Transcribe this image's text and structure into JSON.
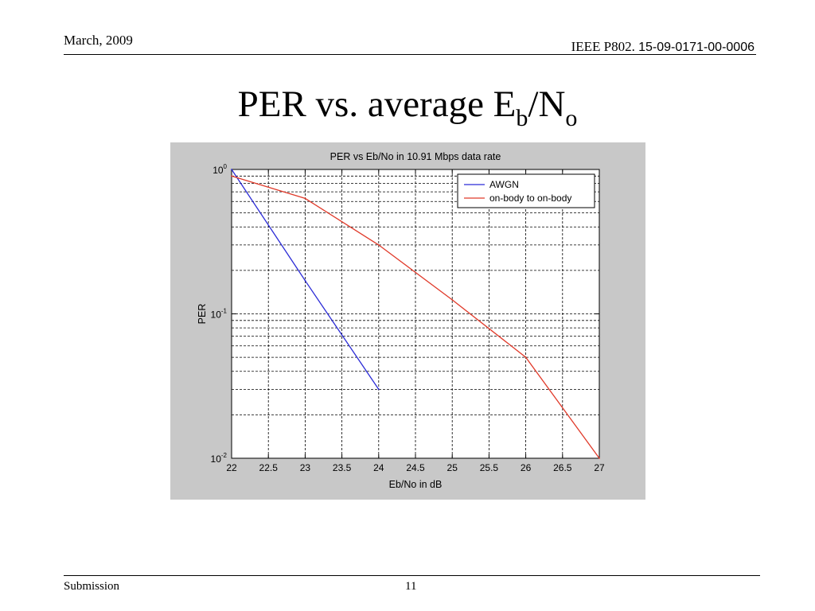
{
  "header": {
    "date": "March, 2009",
    "doc_prefix": "IEEE P802.",
    "doc_number": "15-09-0171-00-0006"
  },
  "slide": {
    "title_main": "PER vs. average E",
    "title_sub1": "b",
    "title_mid": "/N",
    "title_sub2": "o"
  },
  "footer": {
    "left": "Submission",
    "page": "11"
  },
  "colors": {
    "awgn": "#2b2bd6",
    "onbody": "#e03a2a",
    "figure_bg": "#c8c8c8"
  },
  "chart_data": {
    "type": "line",
    "title": "PER vs Eb/No in 10.91 Mbps data rate",
    "xlabel": "Eb/No in dB",
    "ylabel": "PER",
    "xlim": [
      22,
      27
    ],
    "ylim": [
      0.01,
      1
    ],
    "yscale": "log",
    "grid": true,
    "grid_style": "dashed",
    "legend_position": "top-right",
    "x_ticks": [
      22,
      22.5,
      23,
      23.5,
      24,
      24.5,
      25,
      25.5,
      26,
      26.5,
      27
    ],
    "x_tick_labels": [
      "22",
      "22.5",
      "23",
      "23.5",
      "24",
      "24.5",
      "25",
      "25.5",
      "26",
      "26.5",
      "27"
    ],
    "y_ticks": [
      {
        "value": 1,
        "base": "10",
        "exp": "0"
      },
      {
        "value": 0.1,
        "base": "10",
        "exp": "-1"
      },
      {
        "value": 0.01,
        "base": "10",
        "exp": "-2"
      }
    ],
    "series": [
      {
        "name": "AWGN",
        "color": "#2b2bd6",
        "x": [
          22,
          23,
          24
        ],
        "y": [
          1.0,
          0.17,
          0.03
        ]
      },
      {
        "name": "on-body to on-body",
        "color": "#e03a2a",
        "x": [
          22,
          23,
          24,
          25,
          26,
          27
        ],
        "y": [
          0.9,
          0.63,
          0.3,
          0.125,
          0.05,
          0.01
        ]
      }
    ]
  }
}
